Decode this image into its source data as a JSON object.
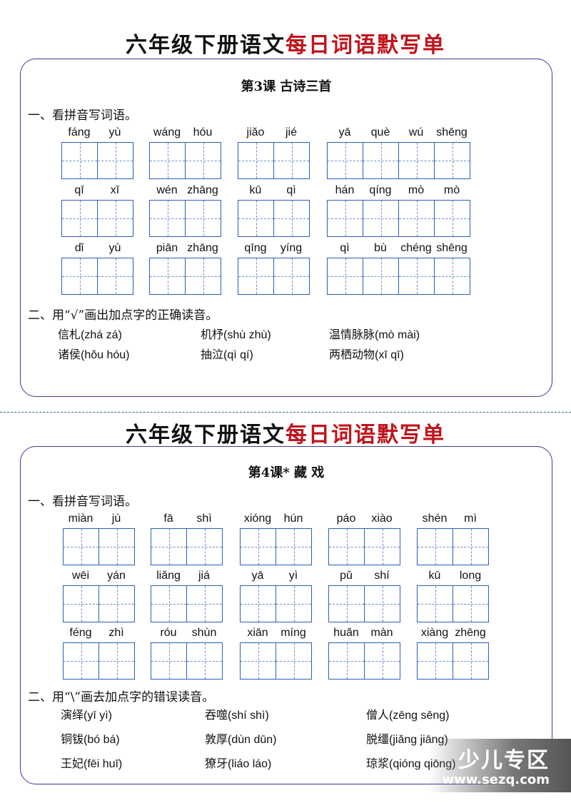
{
  "sheets": [
    {
      "title_black": "六年级下册语文",
      "title_red": "每日词语默写单",
      "lesson": "第3课  古诗三首",
      "section1": "一、看拼音写词语。",
      "rows": [
        [
          [
            "fáng",
            "yù"
          ],
          [
            "wáng",
            "hóu"
          ],
          [
            "jiǎo",
            "jié"
          ],
          [
            "yā",
            "què",
            "wú",
            "shēng"
          ]
        ],
        [
          [
            "qī",
            "xī"
          ],
          [
            "wén",
            "zhāng"
          ],
          [
            "kū",
            "qì"
          ],
          [
            "hán",
            "qíng",
            "mò",
            "mò"
          ]
        ],
        [
          [
            "dǐ",
            "yù"
          ],
          [
            "piān",
            "zhāng"
          ],
          [
            "qīng",
            "yíng"
          ],
          [
            "qì",
            "bù",
            "chéng",
            "shēng"
          ]
        ]
      ],
      "section2": "二、用“√”画出加点字的正确读音。",
      "items": [
        [
          {
            "word": "信札",
            "pinyin": "(zhá   zá)"
          },
          {
            "word": "机杼",
            "pinyin": "(shù   zhù)"
          },
          {
            "word": "温情脉脉",
            "pinyin": "(mò   mài)"
          }
        ],
        [
          {
            "word": "诸侯",
            "pinyin": "(hǒu   hóu)"
          },
          {
            "word": "抽泣",
            "pinyin": "(qì   qí)"
          },
          {
            "word": "两栖动物",
            "pinyin": "(xī   qī)"
          }
        ]
      ]
    },
    {
      "title_black": "六年级下册语文",
      "title_red": "每日词语默写单",
      "lesson": "第4课*  藏  戏",
      "section1": "一、看拼音写词语。",
      "rows": [
        [
          [
            "miàn",
            "jù"
          ],
          [
            "fā",
            "shì"
          ],
          [
            "xióng",
            "hún"
          ],
          [
            "páo",
            "xiào"
          ],
          [
            "shén",
            "mì"
          ]
        ],
        [
          [
            "wēi",
            "yán"
          ],
          [
            "liǎng",
            "jiá"
          ],
          [
            "yā",
            "yì"
          ],
          [
            "pǔ",
            "shí"
          ],
          [
            "kū",
            "long"
          ]
        ],
        [
          [
            "féng",
            "zhì"
          ],
          [
            "róu",
            "shùn"
          ],
          [
            "xiān",
            "míng"
          ],
          [
            "huǎn",
            "màn"
          ],
          [
            "xiàng",
            "zhēng"
          ]
        ]
      ],
      "section2": "二、用“\\”画去加点字的错误读音。",
      "items": [
        [
          {
            "word": "演绎",
            "pinyin": "(yī   yì)"
          },
          {
            "word": "吞噬",
            "pinyin": "(shí   shì)"
          },
          {
            "word": "僧人",
            "pinyin": "(zēng   sēng)"
          }
        ],
        [
          {
            "word": "铜钹",
            "pinyin": "(bó   bá)"
          },
          {
            "word": "敦厚",
            "pinyin": "(dùn   dūn)"
          },
          {
            "word": "脱缰",
            "pinyin": "(jiǎng   jiāng)"
          }
        ],
        [
          {
            "word": "王妃",
            "pinyin": "(fēi   huī)"
          },
          {
            "word": "獠牙",
            "pinyin": "(liáo   láo)"
          },
          {
            "word": "琼浆",
            "pinyin": "(qióng   qiōng)"
          }
        ]
      ]
    }
  ],
  "watermark": {
    "text": "少儿专区",
    "url": "www.sezq.com"
  }
}
